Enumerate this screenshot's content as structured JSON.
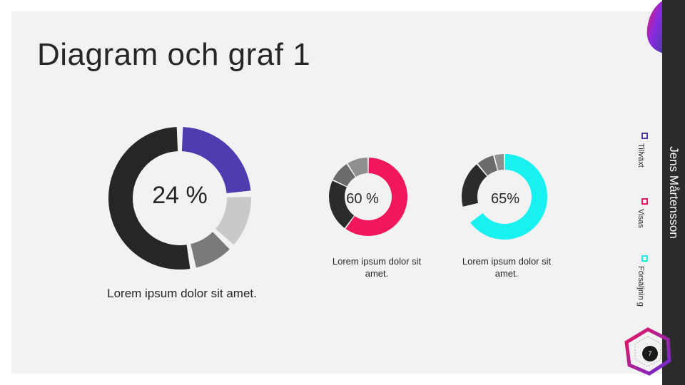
{
  "slide": {
    "title": "Diagram och graf 1",
    "author": "Jens Mårtensson",
    "page_number": "7"
  },
  "legend": [
    {
      "label": "Tillväxt",
      "color": "#4b3aa8"
    },
    {
      "label": "Visas",
      "color": "#e8175d"
    },
    {
      "label": "Försäljnin g",
      "color": "#22e8ea"
    }
  ],
  "chart_data": [
    {
      "type": "pie",
      "variant": "doughnut",
      "center_label": "24 %",
      "caption": "Lorem ipsum dolor sit amet.",
      "slices": [
        {
          "value": 24,
          "color": "#4e3db0"
        },
        {
          "value": 13,
          "color": "#c9c9c9"
        },
        {
          "value": 10,
          "color": "#7a7a7a"
        },
        {
          "value": 53,
          "color": "#262626"
        }
      ]
    },
    {
      "type": "pie",
      "variant": "doughnut",
      "center_label": "60 %",
      "caption": "Lorem ipsum dolor sit amet.",
      "slices": [
        {
          "value": 60,
          "color": "#f0175d"
        },
        {
          "value": 22,
          "color": "#2b2b2b"
        },
        {
          "value": 9,
          "color": "#6b6b6b"
        },
        {
          "value": 9,
          "color": "#8f8f8f"
        }
      ]
    },
    {
      "type": "pie",
      "variant": "doughnut",
      "center_label": "65%",
      "caption": "Lorem ipsum dolor sit amet.",
      "slices": [
        {
          "value": 65,
          "color": "#19f0f0"
        },
        {
          "value": 6,
          "color": "#f2f2f2"
        },
        {
          "value": 18,
          "color": "#2b2b2b"
        },
        {
          "value": 7,
          "color": "#6b6b6b"
        },
        {
          "value": 4,
          "color": "#8f8f8f"
        }
      ]
    }
  ]
}
